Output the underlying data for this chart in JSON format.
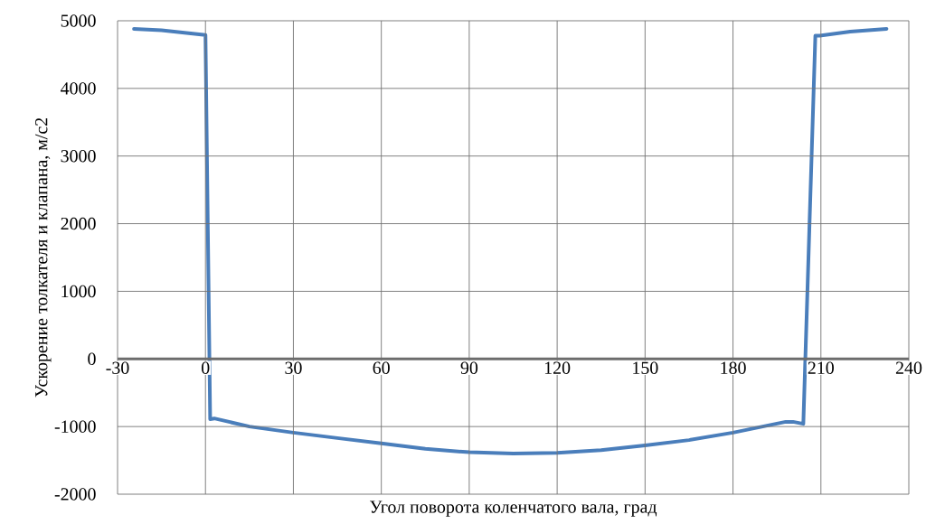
{
  "chart_data": {
    "type": "line",
    "xlabel": "Угол поворота коленчатого вала, град",
    "ylabel": "Ускорение толкателя и клапана, м/с2",
    "x": [
      -24.4,
      -15,
      0,
      1.6,
      3,
      15,
      30,
      45,
      60,
      75,
      90,
      105,
      120,
      135,
      150,
      165,
      180,
      198,
      200.5,
      204,
      208.1,
      209.6,
      220,
      232.4
    ],
    "color": "#4a7ebb",
    "values": [
      4880,
      4860,
      4790,
      -890,
      -880,
      -1000,
      -1090,
      -1170,
      -1250,
      -1330,
      -1380,
      -1400,
      -1390,
      -1350,
      -1280,
      -1200,
      -1090,
      -930,
      -930,
      -960,
      4780,
      4780,
      4840,
      4880
    ],
    "xlim": [
      -30,
      240
    ],
    "ylim": [
      -2000,
      5000
    ],
    "xticks": [
      -30,
      0,
      30,
      60,
      90,
      120,
      150,
      180,
      210,
      240
    ],
    "yticks": [
      -2000,
      -1000,
      0,
      1000,
      2000,
      3000,
      4000,
      5000
    ],
    "grid": true
  }
}
